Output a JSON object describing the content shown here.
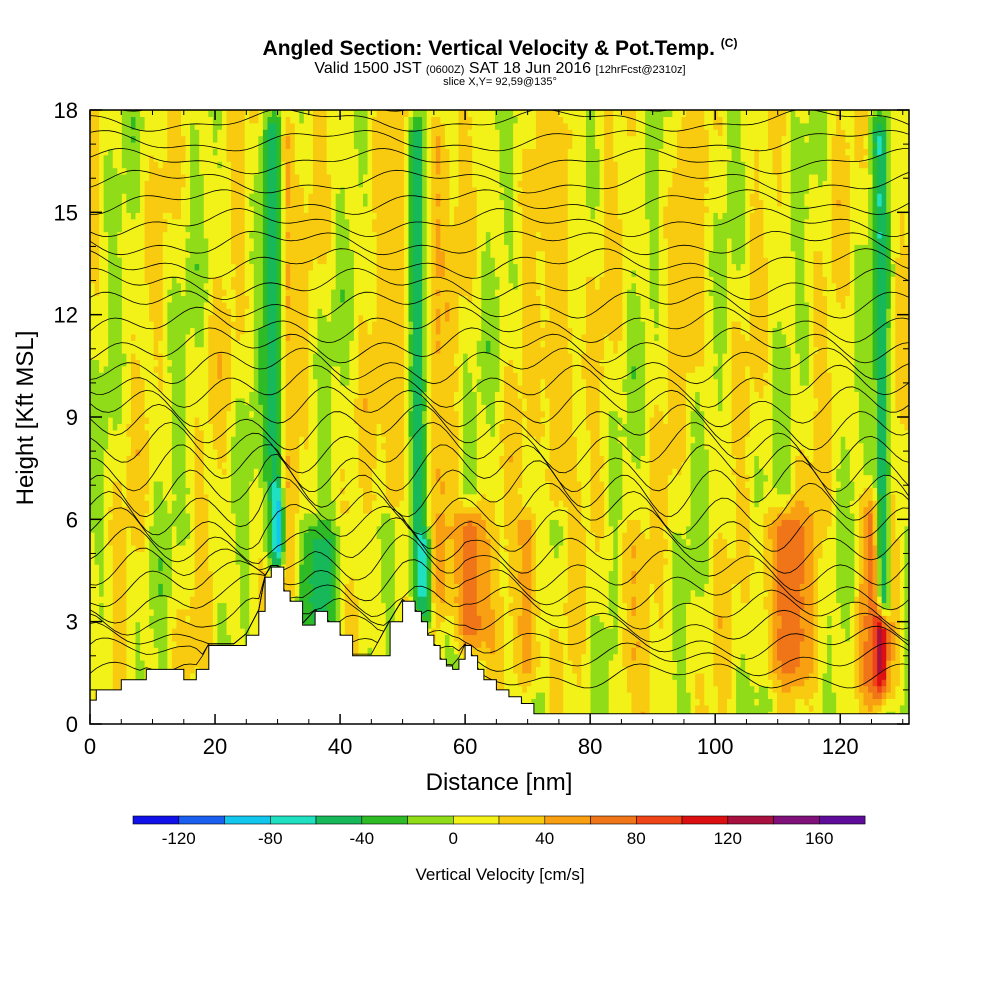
{
  "header": {
    "title": "Angled Section: Vertical Velocity & Pot.Temp.",
    "title_tag": "(C)",
    "valid_prefix": "Valid 1500 JST",
    "valid_utc": "(0600Z)",
    "valid_date": "SAT 18 Jun 2016",
    "forecast": "[12hrFcst@2310z]",
    "slice": "slice X,Y= 92,59@135°"
  },
  "chart_data": {
    "type": "heatmap",
    "xlabel": "Distance [nm]",
    "ylabel": "Height [Kft MSL]",
    "xlim": [
      0,
      131
    ],
    "ylim": [
      0,
      18
    ],
    "x_ticks": [
      0,
      20,
      40,
      60,
      80,
      100,
      120
    ],
    "y_ticks": [
      0,
      3,
      6,
      9,
      12,
      15,
      18
    ],
    "grid": false,
    "colorbar": {
      "label": "Vertical Velocity [cm/s]",
      "tick_values": [
        -120,
        -80,
        -40,
        0,
        40,
        80,
        120,
        160
      ],
      "bounds": [
        -140,
        -120,
        -100,
        -80,
        -60,
        -40,
        -20,
        0,
        20,
        40,
        60,
        80,
        100,
        120,
        140,
        160,
        180
      ],
      "colors": [
        "#1010e8",
        "#1a5ff0",
        "#13c6ee",
        "#1fe0c0",
        "#16b85a",
        "#2ebb26",
        "#90dc18",
        "#f2f218",
        "#f8cb10",
        "#f8a012",
        "#f07418",
        "#ee4418",
        "#dc1010",
        "#a81040",
        "#80107a",
        "#600c9a"
      ]
    },
    "terrain_profile": {
      "x": [
        0,
        1,
        5,
        9,
        15,
        17,
        19,
        23,
        25,
        27,
        28,
        29,
        30,
        31,
        32,
        34,
        36,
        38,
        40,
        42,
        45,
        48,
        50,
        52,
        53,
        54,
        55,
        56,
        57,
        58,
        59,
        60,
        61,
        62,
        63,
        65,
        67,
        69,
        71,
        80,
        100,
        120,
        126,
        131
      ],
      "y": [
        0.7,
        1.0,
        1.3,
        1.6,
        1.3,
        1.6,
        2.3,
        2.3,
        2.6,
        3.3,
        4.3,
        4.6,
        4.6,
        3.9,
        3.6,
        2.9,
        3.3,
        3.0,
        2.6,
        2.0,
        2.0,
        3.0,
        3.6,
        3.3,
        3.0,
        2.6,
        2.3,
        1.9,
        1.7,
        1.6,
        1.9,
        2.3,
        2.0,
        1.6,
        1.3,
        1.0,
        0.8,
        0.6,
        0.3,
        0.3,
        0.3,
        0.3,
        0.3,
        0.3
      ]
    },
    "features": [
      {
        "x": 30,
        "z_bottom": 4.5,
        "z_top": 18,
        "value": -60,
        "width": 1.8
      },
      {
        "x": 30.5,
        "z_bottom": 4.5,
        "z_top": 7,
        "value": -120,
        "width": 1.0
      },
      {
        "x": 32,
        "z_bottom": 3.5,
        "z_top": 18,
        "value": 40,
        "width": 1.3
      },
      {
        "x": 37,
        "z_bottom": 2.5,
        "z_top": 6,
        "value": -50,
        "width": 3
      },
      {
        "x": 49,
        "z_bottom": 6,
        "z_top": 18,
        "value": 30,
        "width": 3
      },
      {
        "x": 53,
        "z_bottom": 3,
        "z_top": 18,
        "value": -60,
        "width": 1.5
      },
      {
        "x": 54,
        "z_bottom": 3,
        "z_top": 6,
        "value": -100,
        "width": 1.0
      },
      {
        "x": 56,
        "z_bottom": 3,
        "z_top": 18,
        "value": 40,
        "width": 2
      },
      {
        "x": 61,
        "z_bottom": 2,
        "z_top": 6.5,
        "value": 70,
        "width": 3
      },
      {
        "x": 70,
        "z_bottom": 1,
        "z_top": 6.5,
        "value": 50,
        "width": 2
      },
      {
        "x": 75,
        "z_bottom": 6,
        "z_top": 18,
        "value": 30,
        "width": 3
      },
      {
        "x": 87,
        "z_bottom": 1,
        "z_top": 6,
        "value": 40,
        "width": 2
      },
      {
        "x": 96,
        "z_bottom": 10,
        "z_top": 18,
        "value": 30,
        "width": 3
      },
      {
        "x": 112,
        "z_bottom": 1,
        "z_top": 6.5,
        "value": 70,
        "width": 4
      },
      {
        "x": 126,
        "z_bottom": 0.5,
        "z_top": 7,
        "value": 80,
        "width": 2.5
      },
      {
        "x": 126.5,
        "z_bottom": 1,
        "z_top": 5,
        "value": 140,
        "width": 0.8
      },
      {
        "x": 127,
        "z_bottom": 3,
        "z_top": 18,
        "value": -60,
        "width": 1.2
      }
    ]
  }
}
